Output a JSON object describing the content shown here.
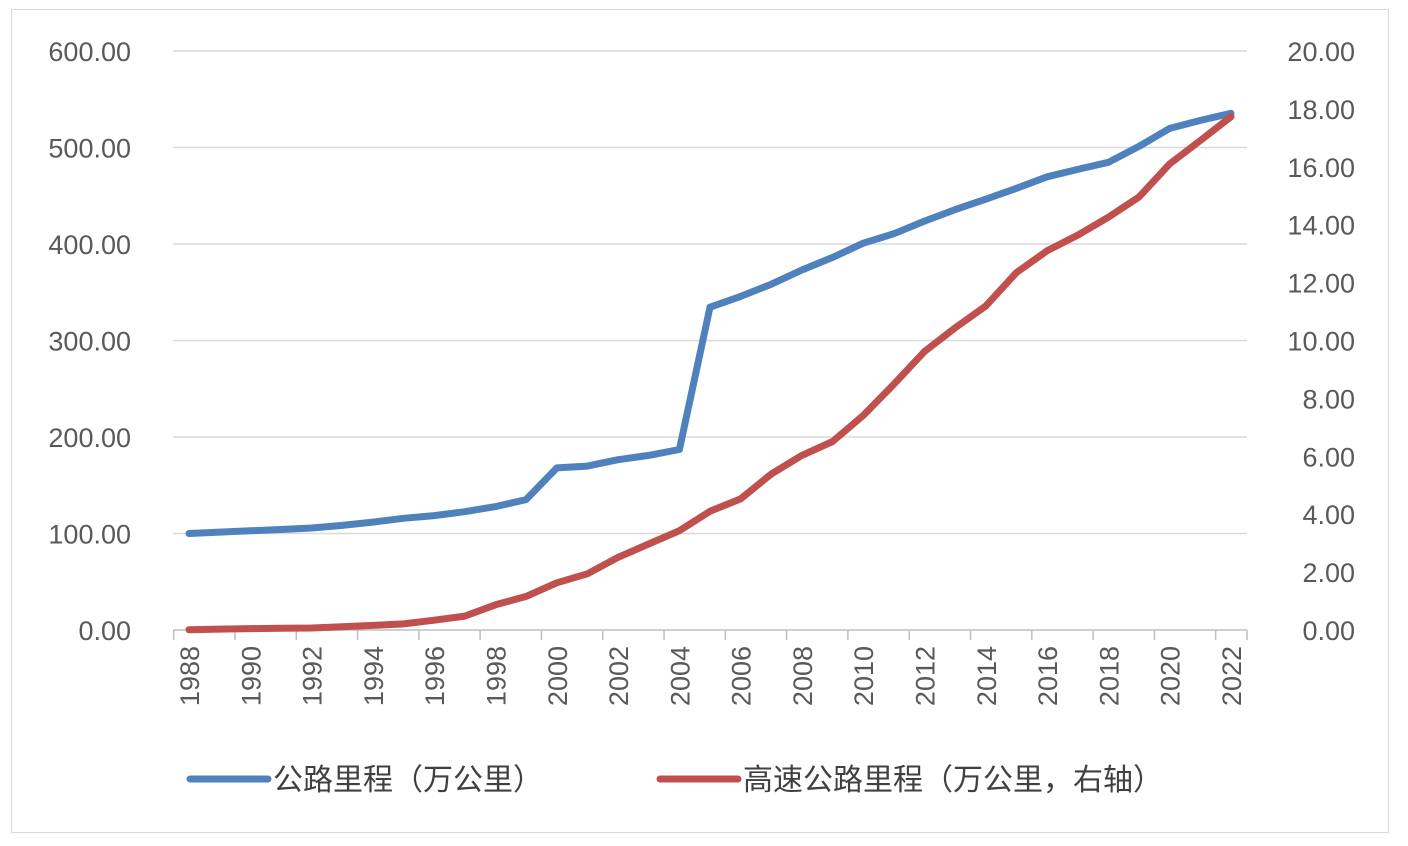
{
  "chart_data": {
    "type": "line",
    "title": "",
    "xlabel": "",
    "ylabel": "",
    "x": [
      1988,
      1989,
      1990,
      1991,
      1992,
      1993,
      1994,
      1995,
      1996,
      1997,
      1998,
      1999,
      2000,
      2001,
      2002,
      2003,
      2004,
      2005,
      2006,
      2007,
      2008,
      2009,
      2010,
      2011,
      2012,
      2013,
      2014,
      2015,
      2016,
      2017,
      2018,
      2019,
      2020,
      2021,
      2022
    ],
    "x_tick_labels": [
      "1988",
      "1990",
      "1992",
      "1994",
      "1996",
      "1998",
      "2000",
      "2002",
      "2004",
      "2006",
      "2008",
      "2010",
      "2012",
      "2014",
      "2016",
      "2018",
      "2020",
      "2022"
    ],
    "y_left": {
      "min": 0,
      "max": 600,
      "ticks": [
        "0.00",
        "100.00",
        "200.00",
        "300.00",
        "400.00",
        "500.00",
        "600.00"
      ]
    },
    "y_right": {
      "min": 0,
      "max": 20,
      "ticks": [
        "0.00",
        "2.00",
        "4.00",
        "6.00",
        "8.00",
        "10.00",
        "12.00",
        "14.00",
        "16.00",
        "18.00",
        "20.00"
      ]
    },
    "grid": true,
    "legend_position": "bottom",
    "series": [
      {
        "name": "公路里程（万公里）",
        "axis": "left",
        "color": "#4f81bd",
        "values": [
          99.96,
          101.43,
          102.83,
          104.11,
          105.67,
          108.35,
          111.78,
          115.7,
          118.58,
          122.64,
          127.85,
          135.17,
          167.98,
          169.8,
          176.52,
          180.98,
          187.07,
          334.52,
          345.7,
          358.37,
          373.02,
          386.08,
          400.82,
          410.64,
          423.75,
          435.62,
          446.39,
          457.73,
          469.63,
          477.35,
          484.65,
          501.25,
          519.81,
          528.07,
          535.48
        ]
      },
      {
        "name": "高速公路里程（万公里，右轴）",
        "axis": "right",
        "color": "#c0504d",
        "values": [
          0.01,
          0.03,
          0.05,
          0.06,
          0.07,
          0.11,
          0.16,
          0.21,
          0.34,
          0.48,
          0.87,
          1.16,
          1.63,
          1.94,
          2.51,
          2.97,
          3.43,
          4.1,
          4.53,
          5.39,
          6.03,
          6.51,
          7.41,
          8.49,
          9.62,
          10.44,
          11.19,
          12.35,
          13.1,
          13.64,
          14.26,
          14.96,
          16.1,
          16.91,
          17.73
        ]
      }
    ]
  }
}
